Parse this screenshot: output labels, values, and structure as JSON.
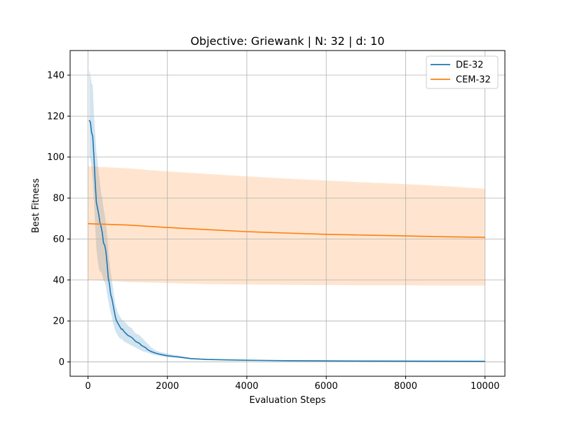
{
  "chart_data": {
    "type": "line",
    "title": "Objective: Griewank | N: 32 | d: 10",
    "xlabel": "Evaluation Steps",
    "ylabel": "Best Fitness",
    "xlim": [
      -450,
      10500
    ],
    "ylim": [
      -7,
      152
    ],
    "xticks": [
      0,
      2000,
      4000,
      6000,
      8000,
      10000
    ],
    "yticks": [
      0,
      20,
      40,
      60,
      80,
      100,
      120,
      140
    ],
    "grid": true,
    "legend_position": "top-right",
    "series": [
      {
        "name": "DE-32",
        "color": "#1f77b4",
        "band_color": "#1f77b4",
        "band_opacity": 0.2,
        "x": [
          30,
          60,
          90,
          120,
          150,
          180,
          210,
          240,
          270,
          300,
          330,
          360,
          390,
          420,
          450,
          480,
          510,
          540,
          570,
          600,
          630,
          660,
          690,
          720,
          750,
          780,
          810,
          840,
          870,
          900,
          950,
          1000,
          1050,
          1100,
          1150,
          1200,
          1250,
          1300,
          1350,
          1400,
          1450,
          1500,
          1600,
          1700,
          1800,
          1900,
          2000,
          2200,
          2400,
          2600,
          2800,
          3000,
          3500,
          4000,
          4500,
          5000,
          6000,
          7000,
          8000,
          9000,
          10000
        ],
        "y": [
          118,
          117,
          112,
          110,
          100,
          88,
          78,
          75,
          72,
          68,
          66,
          63,
          58,
          57,
          54,
          48,
          41,
          38,
          33,
          31,
          28,
          25,
          22,
          20,
          19,
          18,
          17,
          16,
          16,
          15,
          14,
          13,
          12.5,
          12,
          11,
          10,
          9.5,
          9,
          8,
          7.5,
          7,
          6,
          5,
          4.3,
          3.8,
          3.4,
          3,
          2.6,
          2.1,
          1.6,
          1.4,
          1.2,
          1.0,
          0.8,
          0.7,
          0.6,
          0.5,
          0.45,
          0.4,
          0.35,
          0.3
        ],
        "lower": [
          100,
          99,
          95,
          88,
          78,
          66,
          55,
          50,
          46,
          44,
          44,
          42,
          40,
          39,
          37,
          33,
          30,
          27,
          24,
          22,
          19,
          17,
          15,
          14,
          13,
          12,
          11.5,
          11,
          11,
          10,
          9.5,
          9,
          8.5,
          8,
          7.5,
          7,
          6.5,
          6,
          5.5,
          5,
          4.8,
          4.5,
          3.8,
          3.3,
          2.9,
          2.6,
          2.3,
          2.0,
          1.7,
          1.3,
          1.1,
          1.0,
          0.8,
          0.6,
          0.5,
          0.4,
          0.35,
          0.3,
          0.25,
          0.2,
          0.15
        ],
        "upper": [
          143,
          140,
          136,
          135,
          120,
          112,
          103,
          98,
          92,
          88,
          82,
          80,
          75,
          72,
          68,
          62,
          55,
          49,
          44,
          40,
          36,
          32,
          28,
          26,
          24,
          23,
          22,
          21,
          20.5,
          20,
          19,
          18,
          17,
          16.5,
          15,
          14,
          13.5,
          13,
          12,
          11,
          10,
          9,
          7,
          5.6,
          5.0,
          4.5,
          4.0,
          3.4,
          2.7,
          2.0,
          1.8,
          1.5,
          1.2,
          1.0,
          0.9,
          0.8,
          0.7,
          0.65,
          0.6,
          0.55,
          0.5
        ]
      },
      {
        "name": "CEM-32",
        "color": "#ff7f0e",
        "band_color": "#ff7f0e",
        "band_opacity": 0.2,
        "x": [
          0,
          1000,
          2000,
          3000,
          4000,
          5000,
          6000,
          7000,
          8000,
          9000,
          10000
        ],
        "y": [
          67.5,
          66.8,
          65.6,
          64.6,
          63.6,
          62.9,
          62.3,
          61.9,
          61.5,
          61.1,
          60.8
        ],
        "lower": [
          40,
          39,
          38.5,
          38,
          37.8,
          37.6,
          37.5,
          37.4,
          37.4,
          37.3,
          37.3
        ],
        "upper": [
          95.5,
          94.5,
          93,
          91.8,
          90.6,
          89.5,
          88.5,
          87.6,
          86.8,
          85.8,
          84.6
        ]
      }
    ]
  }
}
